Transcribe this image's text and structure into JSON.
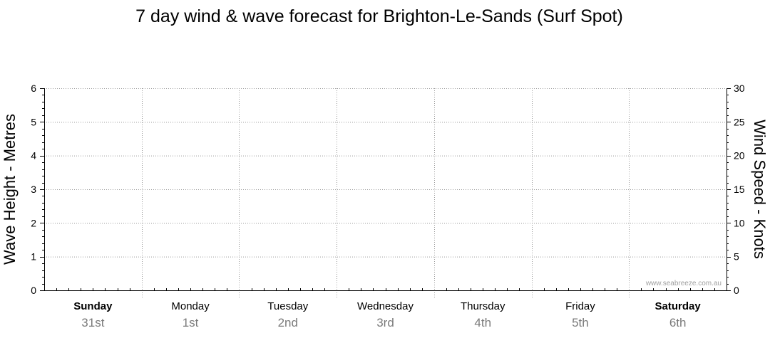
{
  "chart_data": {
    "type": "line",
    "title": "7 day wind & wave forecast for Brighton-Le-Sands  (Surf Spot)",
    "ylabel_left": "Wave Height - Metres",
    "ylabel_right": "Wind Speed - Knots",
    "ylim_left": [
      0,
      6
    ],
    "ylim_right": [
      0,
      30
    ],
    "yticks_left": [
      "0",
      "1",
      "2",
      "3",
      "4",
      "5",
      "6"
    ],
    "yticks_right": [
      "0",
      "5",
      "10",
      "15",
      "20",
      "25",
      "30"
    ],
    "grid": true,
    "days": [
      {
        "name": "Sunday",
        "date": "31st",
        "bold": true
      },
      {
        "name": "Monday",
        "date": "1st",
        "bold": false
      },
      {
        "name": "Tuesday",
        "date": "2nd",
        "bold": false
      },
      {
        "name": "Wednesday",
        "date": "3rd",
        "bold": false
      },
      {
        "name": "Thursday",
        "date": "4th",
        "bold": false
      },
      {
        "name": "Friday",
        "date": "5th",
        "bold": false
      },
      {
        "name": "Saturday",
        "date": "6th",
        "bold": true
      }
    ],
    "series": [],
    "watermark": "www.seabreeze.com.au"
  },
  "colors": {
    "axis": "#000000",
    "grid": "#9a9a9a",
    "date_text": "#7a7a7a",
    "watermark": "#a0a0a0"
  }
}
